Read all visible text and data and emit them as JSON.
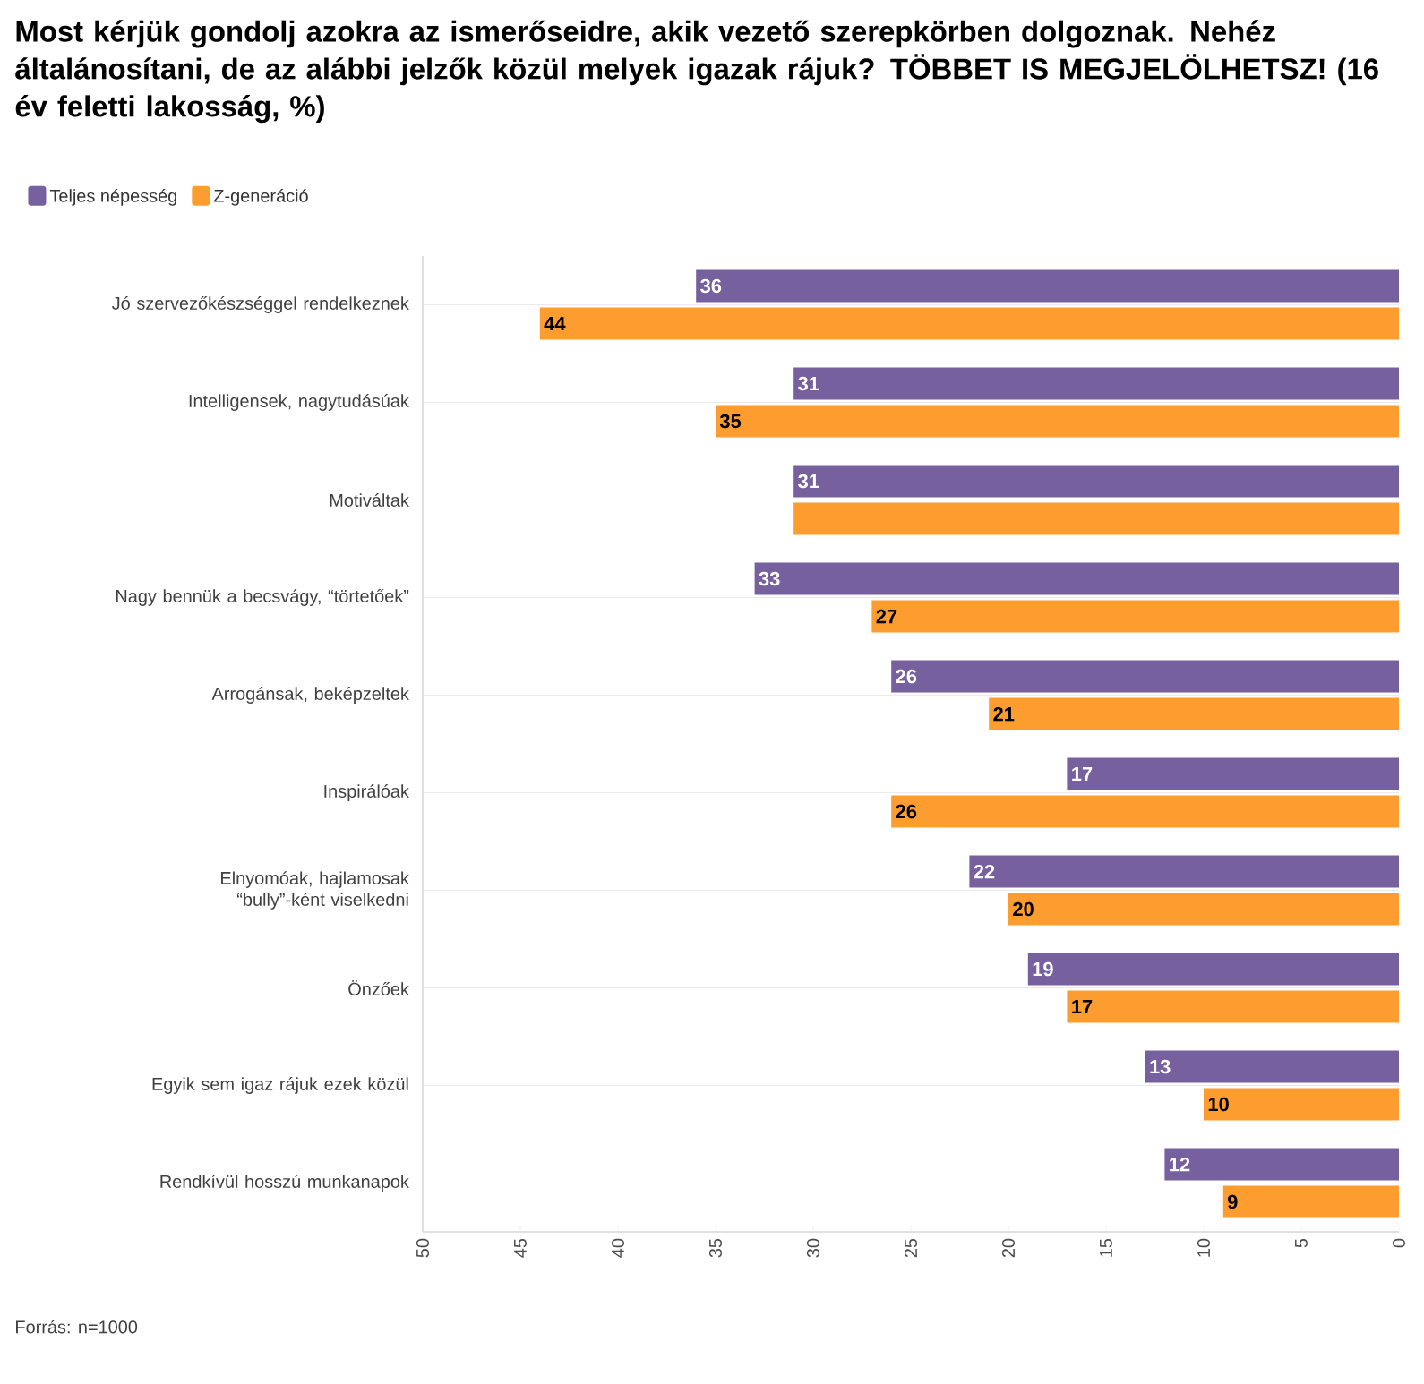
{
  "chart_data": {
    "type": "bar",
    "orientation": "horizontal",
    "title": "Most kérjük gondolj azokra az ismerőseidre, akik vezető szerepkörben dolgoznak. Nehéz általánosítani, de az alábbi jelzők közül melyek igazak rájuk? TÖBBET IS MEGJELÖLHETSZ! (16 év feletti lakosság, %)",
    "categories": [
      "Jó szervezőkészséggel rendelkeznek",
      "Intelligensek, nagytudásúak",
      "Motiváltak",
      "Nagy bennük a becsvágy, “törtetőek”",
      "Arrogánsak, beképzeltek",
      "Inspirálóak",
      "Elnyomóak, hajlamosak “bully”-ként viselkedni",
      "Önzőek",
      "Egyik sem igaz rájuk ezek közül",
      "Rendkívül hosszú munkanapok"
    ],
    "series": [
      {
        "name": "Teljes népesség",
        "color": "#76609e",
        "values": [
          36,
          31,
          31,
          33,
          26,
          17,
          22,
          19,
          13,
          12
        ],
        "value_labels": [
          "36",
          "31",
          "31",
          "33",
          "26",
          "17",
          "22",
          "19",
          "13",
          "12"
        ]
      },
      {
        "name": "Z-generáció",
        "color": "#fd9d2f",
        "values": [
          44,
          35,
          31,
          27,
          21,
          26,
          20,
          17,
          10,
          9
        ],
        "value_labels": [
          "44",
          "35",
          null,
          "27",
          "21",
          "26",
          "20",
          "17",
          "10",
          "9"
        ]
      }
    ],
    "xlim": [
      50,
      0
    ],
    "xticks": [
      50,
      45,
      40,
      35,
      30,
      25,
      20,
      15,
      10,
      5,
      0
    ],
    "grid": "y",
    "legend": "top left",
    "annotations": [
      "Forrás: n=1000"
    ]
  }
}
